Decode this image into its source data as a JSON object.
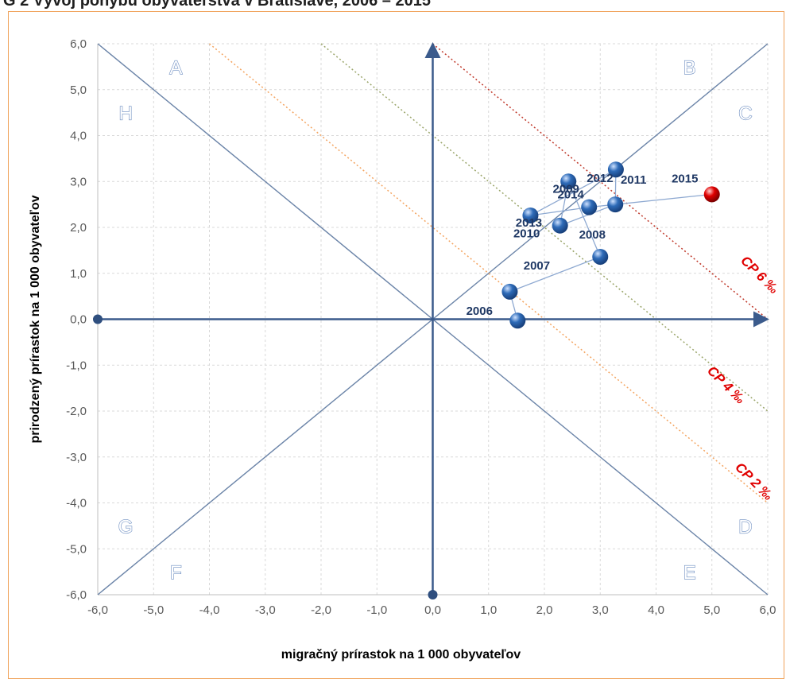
{
  "title": "G 2 Vývoj pohybu obyvateľstva v Bratislave, 2006 – 2015",
  "chart_data": {
    "type": "scatter",
    "title": "G 2 Vývoj pohybu obyvateľstva v Bratislave, 2006 – 2015",
    "xlabel": "migračný prírastok na 1 000 obyvateľov",
    "ylabel": "prirodzený prírastok na 1 000 obyvateľov",
    "xlim": [
      -6,
      6
    ],
    "ylim": [
      -6,
      6
    ],
    "x_ticks": [
      "-6,0",
      "-5,0",
      "-4,0",
      "-3,0",
      "-2,0",
      "-1,0",
      "0,0",
      "1,0",
      "2,0",
      "3,0",
      "4,0",
      "5,0",
      "6,0"
    ],
    "y_ticks": [
      "6,0",
      "5,0",
      "4,0",
      "3,0",
      "2,0",
      "1,0",
      "0,0",
      "-1,0",
      "-2,0",
      "-3,0",
      "-4,0",
      "-5,0",
      "-6,0"
    ],
    "grid": true,
    "points": [
      {
        "label": "2006",
        "x": 1.52,
        "y": -0.03
      },
      {
        "label": "2007",
        "x": 1.38,
        "y": 0.6
      },
      {
        "label": "2008",
        "x": 3.0,
        "y": 1.36
      },
      {
        "label": "2009",
        "x": 2.43,
        "y": 3.0
      },
      {
        "label": "2010",
        "x": 2.28,
        "y": 2.04
      },
      {
        "label": "2011",
        "x": 3.27,
        "y": 2.5
      },
      {
        "label": "2012",
        "x": 3.28,
        "y": 3.26
      },
      {
        "label": "2013",
        "x": 1.75,
        "y": 2.26
      },
      {
        "label": "2014",
        "x": 2.8,
        "y": 2.44
      },
      {
        "label": "2015",
        "x": 5.0,
        "y": 2.72
      }
    ],
    "highlight_point": "2015",
    "point_color": "#2e6bb8",
    "highlight_color": "#e00000",
    "path_color": "#8ea9d1",
    "cp_lines": [
      {
        "label": "CP 2 ‰",
        "value": 2,
        "color": "#f4a460"
      },
      {
        "label": "CP 4 ‰",
        "value": 4,
        "color": "#9aa56a"
      },
      {
        "label": "CP 6 ‰",
        "value": 6,
        "color": "#c0392b"
      }
    ],
    "quadrant_labels": [
      "A",
      "B",
      "C",
      "D",
      "E",
      "F",
      "G",
      "H"
    ],
    "colors": {
      "axis": "#3b5b8c",
      "diagonal": "#6b84a8",
      "grid": "#d9d9d9",
      "frame": "#f0a35b"
    }
  }
}
